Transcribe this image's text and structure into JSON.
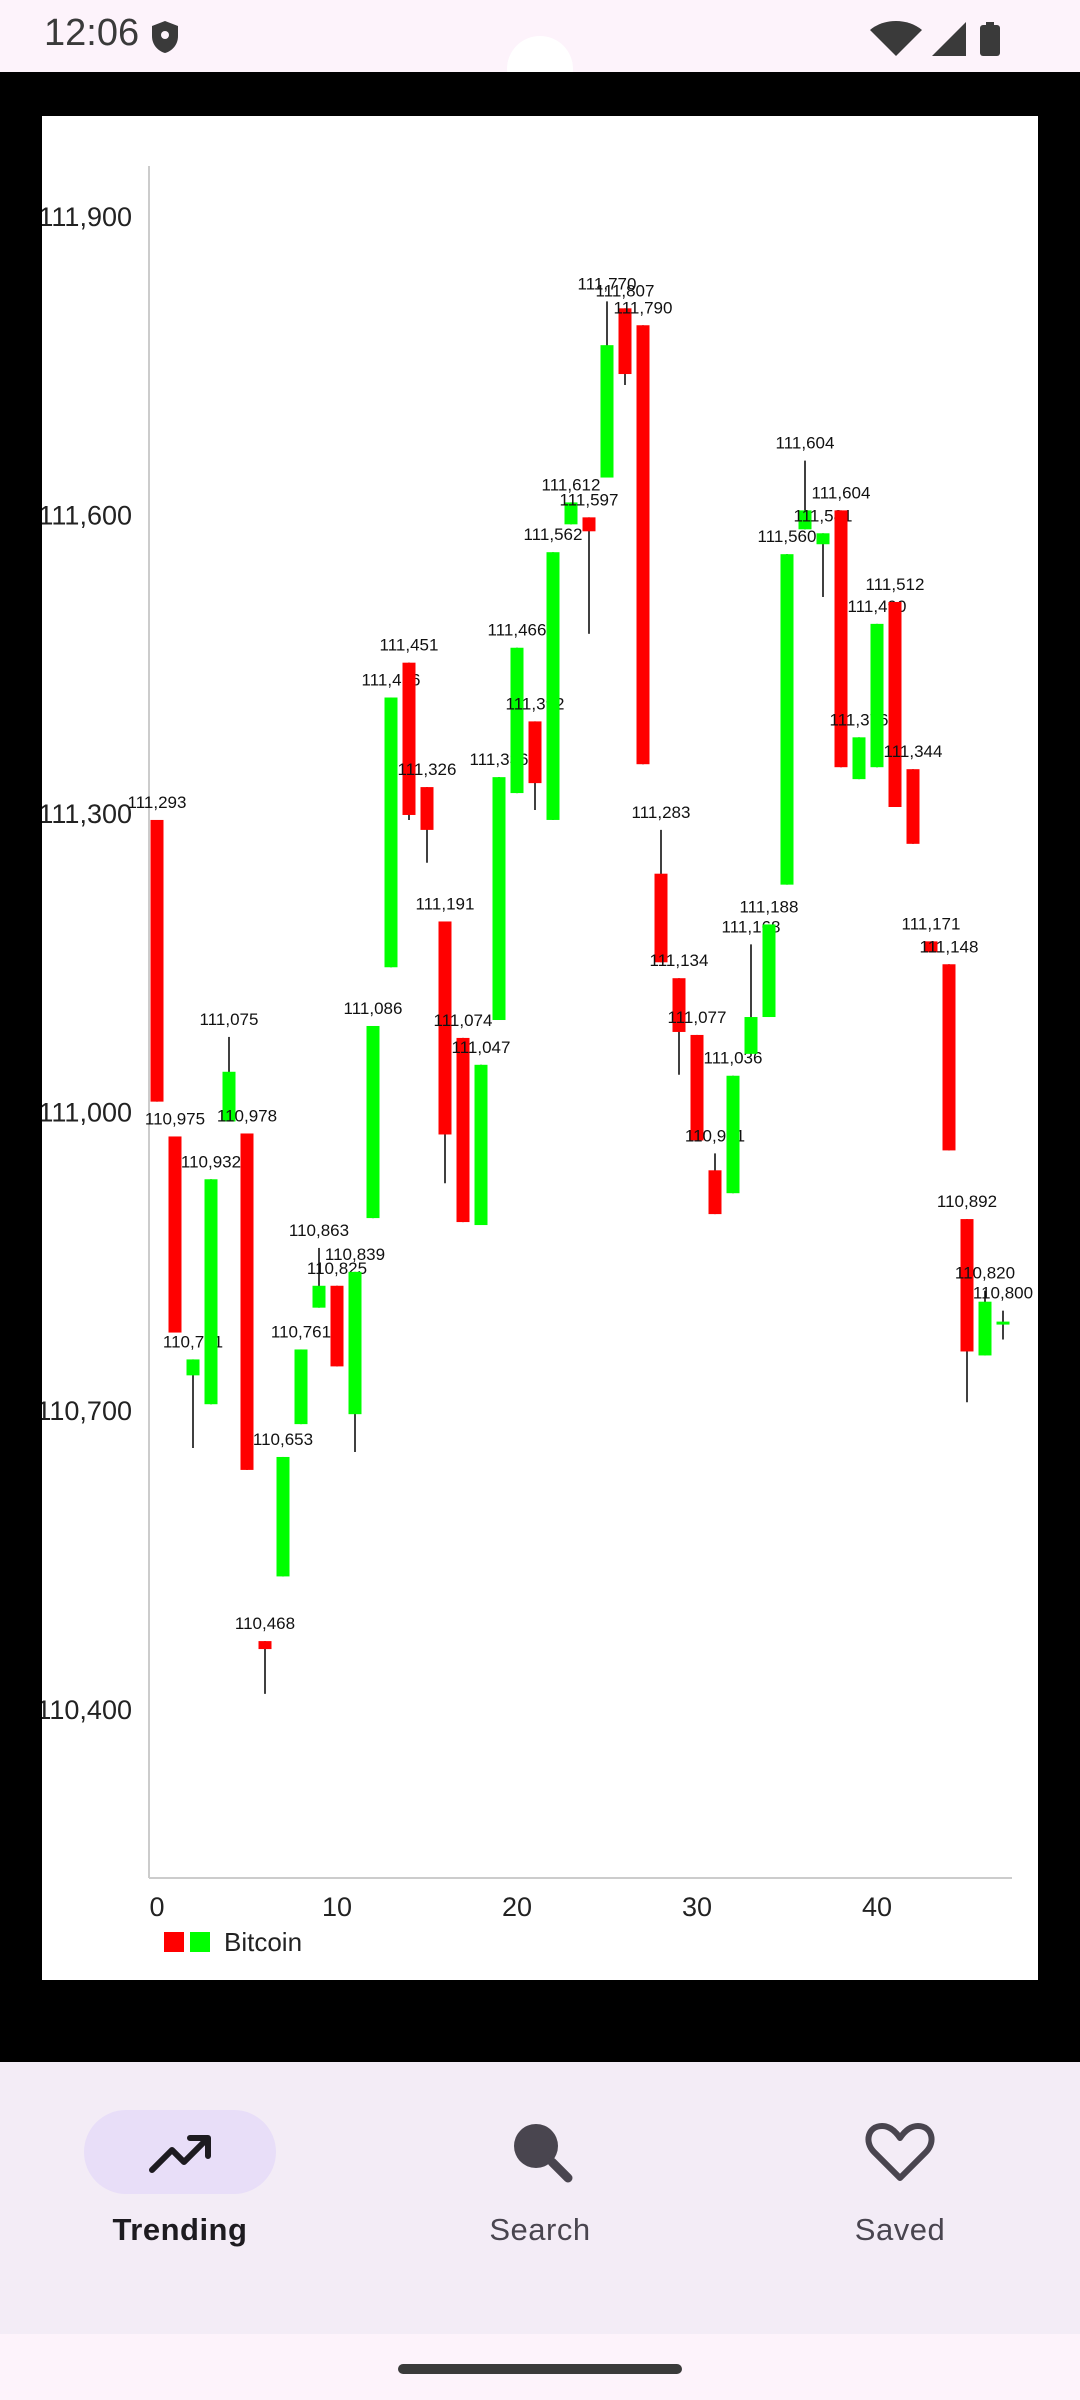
{
  "status_bar": {
    "time": "12:06",
    "icons": [
      "shield-icon",
      "wifi-icon",
      "signal-icon",
      "battery-icon"
    ]
  },
  "colors": {
    "decreasing": "#ff0000",
    "increasing": "#00ff00",
    "wick": "#000000",
    "axis": "#cccccc",
    "nav_active_pill": "#e8def8",
    "nav_bg": "#f3ecf6"
  },
  "chart_data": {
    "type": "candlestick",
    "title": "",
    "xlabel": "",
    "ylabel": "",
    "xlim": [
      0,
      47.5
    ],
    "ylim": [
      110230,
      111950
    ],
    "x_ticks": [
      "0",
      "10",
      "20",
      "30",
      "40"
    ],
    "x_tick_values": [
      0,
      10,
      20,
      30,
      40
    ],
    "y_ticks": [
      "110,400",
      "110,700",
      "111,000",
      "111,300",
      "111,600",
      "111,900"
    ],
    "y_tick_values": [
      110400,
      110700,
      111000,
      111300,
      111600,
      111900
    ],
    "grid": false,
    "legend": {
      "position": "bottom-left",
      "label": "Bitcoin"
    },
    "candles": [
      {
        "x": 0,
        "open": 111293,
        "close": 111010,
        "high": 111293,
        "low": 111010,
        "label": "111,293"
      },
      {
        "x": 1,
        "open": 110975,
        "close": 110778,
        "high": 110975,
        "low": 110778,
        "label": "110,975"
      },
      {
        "x": 2,
        "open": 110735,
        "close": 110751,
        "high": 110751,
        "low": 110662,
        "label": "110,751"
      },
      {
        "x": 3,
        "open": 110706,
        "close": 110932,
        "high": 110932,
        "low": 110706,
        "label": "110,932"
      },
      {
        "x": 4,
        "open": 110990,
        "close": 111040,
        "high": 111075,
        "low": 110990,
        "label": "111,075"
      },
      {
        "x": 5,
        "open": 110978,
        "close": 110640,
        "high": 110978,
        "low": 110640,
        "label": "110,978"
      },
      {
        "x": 6,
        "open": 110468,
        "close": 110460,
        "high": 110468,
        "low": 110415,
        "label": "110,468"
      },
      {
        "x": 7,
        "open": 110533,
        "close": 110653,
        "high": 110653,
        "low": 110533,
        "label": "110,653"
      },
      {
        "x": 8,
        "open": 110686,
        "close": 110761,
        "high": 110761,
        "low": 110686,
        "label": "110,761"
      },
      {
        "x": 9,
        "open": 110803,
        "close": 110825,
        "high": 110863,
        "low": 110803,
        "label": "110,863"
      },
      {
        "x": 10,
        "open": 110825,
        "close": 110744,
        "high": 110825,
        "low": 110744,
        "label": "110,825"
      },
      {
        "x": 11,
        "open": 110696,
        "close": 110839,
        "high": 110839,
        "low": 110658,
        "label": "110,839"
      },
      {
        "x": 12,
        "open": 110893,
        "close": 111086,
        "high": 111086,
        "low": 110893,
        "label": "111,086"
      },
      {
        "x": 13,
        "open": 111145,
        "close": 111416,
        "high": 111416,
        "low": 111145,
        "label": "111,416"
      },
      {
        "x": 14,
        "open": 111451,
        "close": 111298,
        "high": 111451,
        "low": 111293,
        "label": "111,451"
      },
      {
        "x": 15,
        "open": 111326,
        "close": 111283,
        "high": 111326,
        "low": 111250,
        "label": "111,326"
      },
      {
        "x": 16,
        "open": 111191,
        "close": 110977,
        "high": 111191,
        "low": 110928,
        "label": "111,191"
      },
      {
        "x": 17,
        "open": 111074,
        "close": 110889,
        "high": 111074,
        "low": 110889,
        "label": "111,074"
      },
      {
        "x": 18,
        "open": 110886,
        "close": 111047,
        "high": 111047,
        "low": 110886,
        "label": "111,047"
      },
      {
        "x": 19,
        "open": 111092,
        "close": 111336,
        "high": 111336,
        "low": 111092,
        "label": "111,336"
      },
      {
        "x": 20,
        "open": 111320,
        "close": 111466,
        "high": 111466,
        "low": 111320,
        "label": "111,466"
      },
      {
        "x": 21,
        "open": 111392,
        "close": 111330,
        "high": 111392,
        "low": 111303,
        "label": "111,392"
      },
      {
        "x": 22,
        "open": 111293,
        "close": 111562,
        "high": 111562,
        "low": 111293,
        "label": "111,562"
      },
      {
        "x": 23,
        "open": 111590,
        "close": 111612,
        "high": 111612,
        "low": 111590,
        "label": "111,612"
      },
      {
        "x": 24,
        "open": 111597,
        "close": 111583,
        "high": 111597,
        "low": 111480,
        "label": "111,597"
      },
      {
        "x": 25,
        "open": 111637,
        "close": 111770,
        "high": 111814,
        "low": 111637,
        "label": "111,770"
      },
      {
        "x": 26,
        "open": 111807,
        "close": 111741,
        "high": 111807,
        "low": 111730,
        "label": "111,807"
      },
      {
        "x": 27,
        "open": 111790,
        "close": 111349,
        "high": 111790,
        "low": 111349,
        "label": "111,790"
      },
      {
        "x": 28,
        "open": 111239,
        "close": 111150,
        "high": 111283,
        "low": 111150,
        "label": "111,283"
      },
      {
        "x": 29,
        "open": 111134,
        "close": 111080,
        "high": 111134,
        "low": 111037,
        "label": "111,134"
      },
      {
        "x": 30,
        "open": 111077,
        "close": 110971,
        "high": 111077,
        "low": 110971,
        "label": "111,077"
      },
      {
        "x": 31,
        "open": 110941,
        "close": 110897,
        "high": 110958,
        "low": 110897,
        "label": "110,941"
      },
      {
        "x": 32,
        "open": 110918,
        "close": 111036,
        "high": 111036,
        "low": 110918,
        "label": "111,036"
      },
      {
        "x": 33,
        "open": 111058,
        "close": 111095,
        "high": 111168,
        "low": 111058,
        "label": "111,168"
      },
      {
        "x": 34,
        "open": 111095,
        "close": 111188,
        "high": 111188,
        "low": 111095,
        "label": "111,188"
      },
      {
        "x": 35,
        "open": 111228,
        "close": 111560,
        "high": 111560,
        "low": 111228,
        "label": "111,560"
      },
      {
        "x": 36,
        "open": 111585,
        "close": 111604,
        "high": 111654,
        "low": 111585,
        "label": "111,604"
      },
      {
        "x": 37,
        "open": 111570,
        "close": 111581,
        "high": 111581,
        "low": 111517,
        "label": "111,581"
      },
      {
        "x": 38,
        "open": 111604,
        "close": 111346,
        "high": 111604,
        "low": 111346,
        "label": "111,604"
      },
      {
        "x": 39,
        "open": 111334,
        "close": 111376,
        "high": 111376,
        "low": 111334,
        "label": "111,376"
      },
      {
        "x": 40,
        "open": 111346,
        "close": 111490,
        "high": 111490,
        "low": 111346,
        "label": "111,490"
      },
      {
        "x": 41,
        "open": 111512,
        "close": 111306,
        "high": 111512,
        "low": 111306,
        "label": "111,512"
      },
      {
        "x": 42,
        "open": 111344,
        "close": 111269,
        "high": 111344,
        "low": 111269,
        "label": "111,344"
      },
      {
        "x": 43,
        "open": 111171,
        "close": 111160,
        "high": 111171,
        "low": 111160,
        "label": "111,171"
      },
      {
        "x": 44,
        "open": 111148,
        "close": 110961,
        "high": 111148,
        "low": 110961,
        "label": "111,148"
      },
      {
        "x": 45,
        "open": 110892,
        "close": 110759,
        "high": 110892,
        "low": 110708,
        "label": "110,892"
      },
      {
        "x": 46,
        "open": 110755,
        "close": 110809,
        "high": 110820,
        "low": 110755,
        "label": "110,820"
      },
      {
        "x": 47,
        "open": 110786,
        "close": 110789,
        "high": 110800,
        "low": 110771,
        "label": "110,800"
      }
    ]
  },
  "bottom_nav": {
    "items": [
      {
        "label": "Trending",
        "icon": "trending-up-icon",
        "active": true
      },
      {
        "label": "Search",
        "icon": "search-icon",
        "active": false
      },
      {
        "label": "Saved",
        "icon": "heart-icon",
        "active": false
      }
    ]
  }
}
